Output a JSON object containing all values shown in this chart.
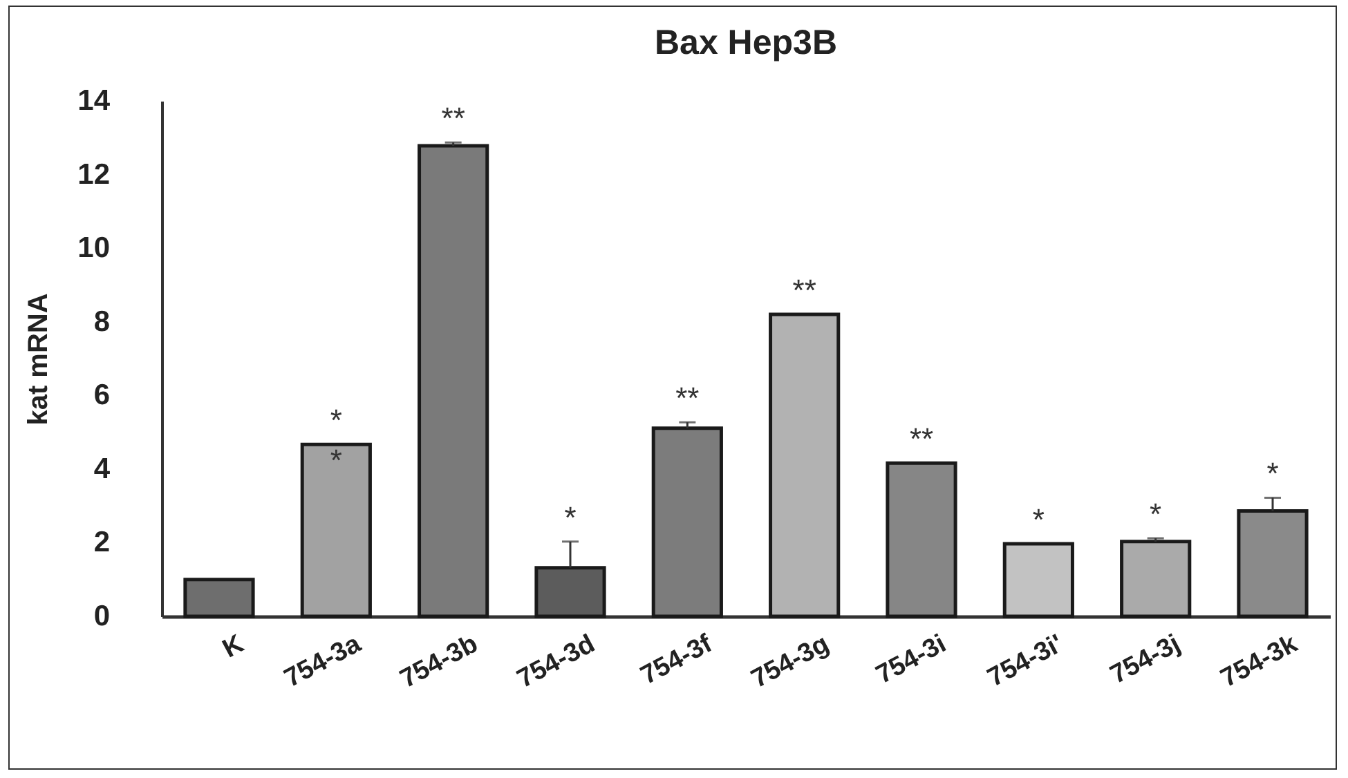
{
  "chart_data": {
    "type": "bar",
    "title": "Bax Hep3B",
    "ylabel": "kat mRNA",
    "categories": [
      "K",
      "754-3a",
      "754-3b",
      "754-3d",
      "754-3f",
      "754-3g",
      "754-3i",
      "754-3i'",
      "754-3j",
      "754-3k"
    ],
    "values": [
      1.0,
      4.67,
      12.78,
      1.32,
      5.11,
      8.2,
      4.16,
      1.97,
      2.03,
      2.86
    ],
    "errors": [
      null,
      null,
      0.09,
      0.71,
      0.16,
      null,
      null,
      null,
      0.09,
      0.36
    ],
    "colors": [
      "#6e6e6e",
      "#a2a2a2",
      "#7a7a7a",
      "#5c5c5c",
      "#7c7c7c",
      "#b2b2b2",
      "#868686",
      "#c2c2c2",
      "#aaaaaa",
      "#8a8a8a"
    ],
    "ylim": [
      0,
      14
    ],
    "yticks": [
      0,
      2,
      4,
      6,
      8,
      10,
      12,
      14
    ],
    "grid": false,
    "legend": false,
    "annotations": [
      {
        "text": "*",
        "x": "754-3a",
        "y": 4.67
      },
      {
        "text": "*",
        "x": "754-3a",
        "y": 4.67
      },
      {
        "text": "**",
        "x": "754-3b",
        "y": 12.87
      },
      {
        "text": "*",
        "x": "754-3d",
        "y": 2.03
      },
      {
        "text": "**",
        "x": "754-3f",
        "y": 5.27
      },
      {
        "text": "**",
        "x": "754-3g",
        "y": 8.2
      },
      {
        "text": "**",
        "x": "754-3i",
        "y": 4.16
      },
      {
        "text": "*",
        "x": "754-3i'",
        "y": 1.97
      },
      {
        "text": "*",
        "x": "754-3j",
        "y": 2.12
      },
      {
        "text": "*",
        "x": "754-3k",
        "y": 2.86
      }
    ]
  }
}
